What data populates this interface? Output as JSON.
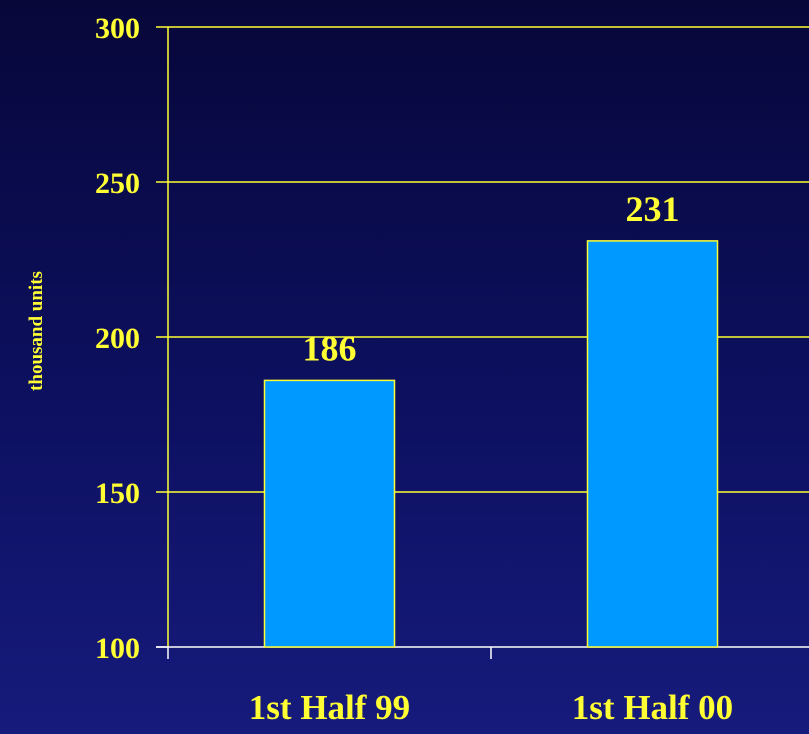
{
  "chart_data": {
    "type": "bar",
    "title": "",
    "xlabel": "",
    "ylabel": "thousand units",
    "categories": [
      "1st Half 99",
      "1st Half 00"
    ],
    "values": [
      186,
      231
    ],
    "data_labels": [
      "186",
      "231"
    ],
    "ylim": [
      100,
      300
    ],
    "yticks": [
      100,
      150,
      200,
      250,
      300
    ],
    "ytick_labels": [
      "100",
      "150",
      "200",
      "250",
      "300"
    ],
    "grid": true,
    "legend": "none"
  },
  "colors": {
    "bar_fill": "#0099ff",
    "bar_stroke": "#ffff33",
    "text": "#ffff33",
    "grid": "#ffff33",
    "axis": "#ffffff",
    "background_top": "#07073a",
    "background_bottom": "#161b7c"
  }
}
